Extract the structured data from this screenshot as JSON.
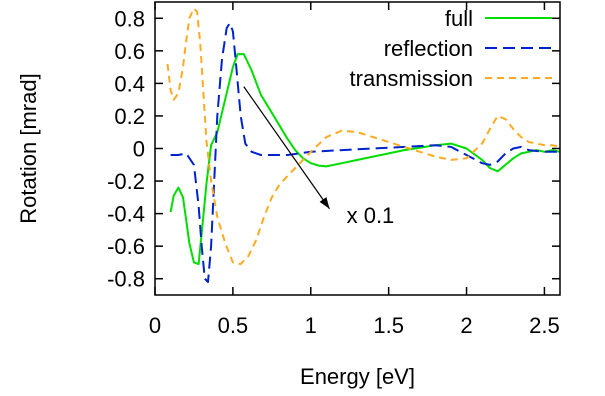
{
  "chart_data": {
    "type": "line",
    "title": "",
    "xlabel": "Energy [eV]",
    "ylabel": "Rotation [mrad]",
    "xlim": [
      0,
      2.6
    ],
    "ylim": [
      -0.9,
      0.9
    ],
    "x_ticks": [
      0,
      0.5,
      1,
      1.5,
      2,
      2.5
    ],
    "x_tick_labels": [
      "0",
      "0.5",
      "1",
      "1.5",
      "2",
      "2.5"
    ],
    "y_ticks": [
      -0.8,
      -0.6,
      -0.4,
      -0.2,
      0,
      0.2,
      0.4,
      0.6,
      0.8
    ],
    "y_tick_labels": [
      "-0.8",
      "-0.6",
      "-0.4",
      "-0.2",
      "0",
      "0.2",
      "0.4",
      "0.6",
      "0.8"
    ],
    "grid": false,
    "legend_position": "top-right",
    "series": [
      {
        "name": "full",
        "color": "#00dd00",
        "dash": "solid",
        "x": [
          0.1,
          0.12,
          0.15,
          0.18,
          0.2,
          0.22,
          0.25,
          0.28,
          0.3,
          0.33,
          0.36,
          0.4,
          0.45,
          0.5,
          0.53,
          0.57,
          0.62,
          0.68,
          0.75,
          0.8,
          0.85,
          0.9,
          0.95,
          1.0,
          1.05,
          1.1,
          1.2,
          1.3,
          1.4,
          1.5,
          1.6,
          1.7,
          1.8,
          1.9,
          2.0,
          2.1,
          2.15,
          2.2,
          2.25,
          2.3,
          2.35,
          2.4,
          2.45,
          2.5,
          2.55,
          2.6
        ],
        "y": [
          -0.39,
          -0.29,
          -0.24,
          -0.3,
          -0.44,
          -0.58,
          -0.7,
          -0.71,
          -0.52,
          -0.22,
          0.02,
          0.1,
          0.3,
          0.5,
          0.58,
          0.58,
          0.48,
          0.33,
          0.22,
          0.14,
          0.06,
          -0.01,
          -0.06,
          -0.09,
          -0.105,
          -0.11,
          -0.09,
          -0.07,
          -0.05,
          -0.03,
          -0.01,
          0.005,
          0.02,
          0.03,
          0.0,
          -0.07,
          -0.12,
          -0.14,
          -0.1,
          -0.06,
          -0.03,
          -0.02,
          -0.01,
          -0.02,
          -0.01,
          -0.02
        ]
      },
      {
        "name": "reflection",
        "color": "#0022cc",
        "dash": "dashed",
        "x": [
          0.1,
          0.15,
          0.2,
          0.25,
          0.28,
          0.3,
          0.32,
          0.34,
          0.36,
          0.38,
          0.4,
          0.43,
          0.46,
          0.48,
          0.5,
          0.52,
          0.55,
          0.58,
          0.62,
          0.68,
          0.75,
          0.85,
          1.0,
          1.2,
          1.4,
          1.6,
          1.8,
          1.9,
          2.0,
          2.1,
          2.15,
          2.2,
          2.25,
          2.3,
          2.35,
          2.4,
          2.5,
          2.6
        ],
        "y": [
          -0.04,
          -0.04,
          -0.03,
          -0.1,
          -0.35,
          -0.6,
          -0.8,
          -0.82,
          -0.6,
          -0.2,
          0.2,
          0.55,
          0.74,
          0.77,
          0.72,
          0.52,
          0.2,
          0.03,
          -0.02,
          -0.04,
          -0.04,
          -0.04,
          -0.02,
          -0.01,
          0.0,
          0.01,
          0.02,
          0.01,
          -0.04,
          -0.09,
          -0.1,
          -0.08,
          -0.03,
          0.0,
          0.01,
          -0.01,
          -0.02,
          -0.02
        ]
      },
      {
        "name": "transmission",
        "color": "#ffaa22",
        "dash": "dotted",
        "x": [
          0.08,
          0.1,
          0.12,
          0.15,
          0.18,
          0.2,
          0.22,
          0.25,
          0.27,
          0.29,
          0.31,
          0.33,
          0.36,
          0.4,
          0.45,
          0.5,
          0.55,
          0.6,
          0.65,
          0.7,
          0.75,
          0.8,
          0.9,
          1.0,
          1.1,
          1.2,
          1.3,
          1.4,
          1.5,
          1.6,
          1.7,
          1.8,
          1.9,
          2.0,
          2.1,
          2.15,
          2.2,
          2.25,
          2.3,
          2.35,
          2.4,
          2.45,
          2.5,
          2.55,
          2.6
        ],
        "y": [
          0.52,
          0.36,
          0.3,
          0.34,
          0.5,
          0.66,
          0.8,
          0.86,
          0.84,
          0.65,
          0.35,
          0.05,
          -0.2,
          -0.42,
          -0.58,
          -0.7,
          -0.71,
          -0.66,
          -0.56,
          -0.42,
          -0.3,
          -0.22,
          -0.12,
          -0.02,
          0.07,
          0.11,
          0.1,
          0.07,
          0.04,
          0.01,
          -0.02,
          -0.05,
          -0.07,
          -0.06,
          0.03,
          0.12,
          0.2,
          0.18,
          0.12,
          0.07,
          0.04,
          0.03,
          0.02,
          0.02,
          0.01
        ]
      }
    ],
    "annotation": {
      "text": "x 0.1",
      "arrow_from": [
        0.57,
        0.38
      ],
      "arrow_to": [
        1.12,
        -0.37
      ],
      "label_at": [
        1.23,
        -0.41
      ]
    }
  }
}
